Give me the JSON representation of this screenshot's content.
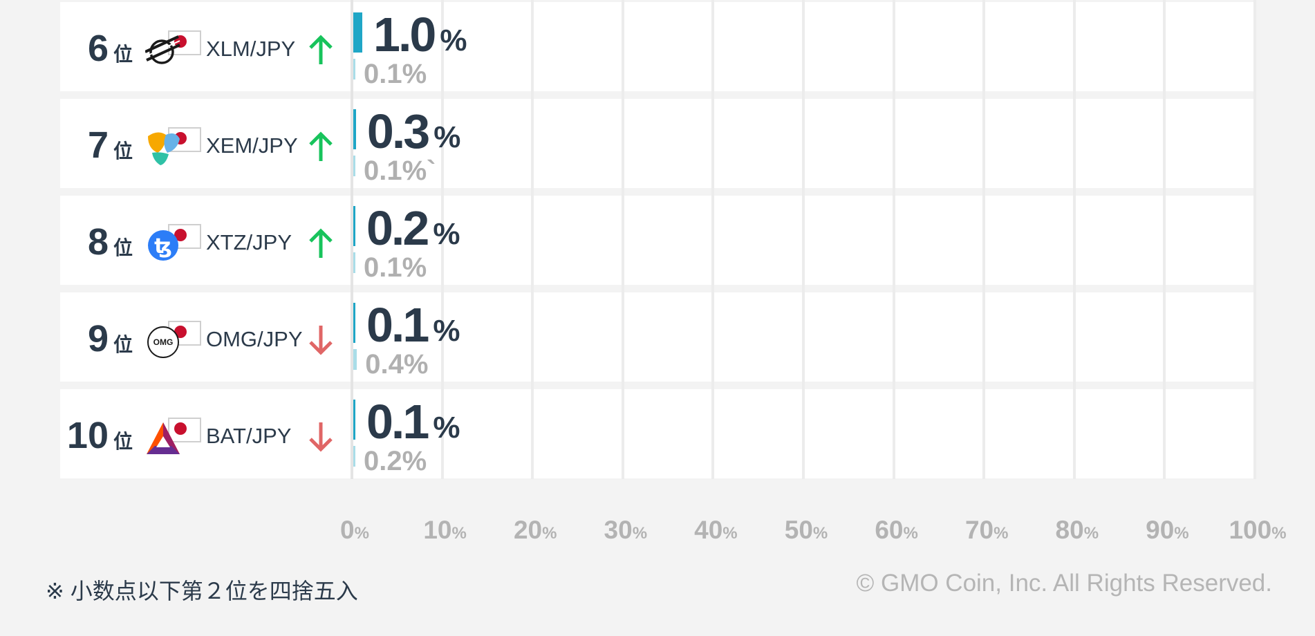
{
  "chart_data": {
    "type": "bar",
    "orientation": "horizontal",
    "xlim": [
      0,
      100
    ],
    "x_ticks": [
      {
        "value": "0",
        "unit": "%"
      },
      {
        "value": "10",
        "unit": "%"
      },
      {
        "value": "20",
        "unit": "%"
      },
      {
        "value": "30",
        "unit": "%"
      },
      {
        "value": "40",
        "unit": "%"
      },
      {
        "value": "50",
        "unit": "%"
      },
      {
        "value": "60",
        "unit": "%"
      },
      {
        "value": "70",
        "unit": "%"
      },
      {
        "value": "80",
        "unit": "%"
      },
      {
        "value": "90",
        "unit": "%"
      },
      {
        "value": "100",
        "unit": "%"
      }
    ],
    "rank_suffix": "位",
    "value_unit": "%",
    "rows": [
      {
        "rank": "6",
        "pair": "XLM/JPY",
        "coin_icon": "stellar-icon",
        "trend": "up",
        "value": 1.0,
        "value_label": "1.0",
        "prev_value": 0.1,
        "prev_label": "0.1%"
      },
      {
        "rank": "7",
        "pair": "XEM/JPY",
        "coin_icon": "nem-icon",
        "trend": "up",
        "value": 0.3,
        "value_label": "0.3",
        "prev_value": 0.1,
        "prev_label": "0.1%`"
      },
      {
        "rank": "8",
        "pair": "XTZ/JPY",
        "coin_icon": "tezos-icon",
        "trend": "up",
        "value": 0.2,
        "value_label": "0.2",
        "prev_value": 0.1,
        "prev_label": "0.1%"
      },
      {
        "rank": "9",
        "pair": "OMG/JPY",
        "coin_icon": "omg-icon",
        "coin_text": "OMG",
        "trend": "down",
        "value": 0.1,
        "value_label": "0.1",
        "prev_value": 0.4,
        "prev_label": "0.4%"
      },
      {
        "rank": "10",
        "pair": "BAT/JPY",
        "coin_icon": "bat-icon",
        "trend": "down",
        "value": 0.1,
        "value_label": "0.1",
        "prev_value": 0.2,
        "prev_label": "0.2%"
      }
    ]
  },
  "footnote": "※ 小数点以下第２位を四捨五入",
  "copyright": "© GMO Coin, Inc. All Rights Reserved.",
  "colors": {
    "bar": "#1fa6c6",
    "prev_bar": "#a9dde8",
    "up_arrow": "#18c35c",
    "down_arrow": "#e06666",
    "flag_red": "#c8102e",
    "tezos": "#2c7df7",
    "text": "#2b3a4a"
  }
}
